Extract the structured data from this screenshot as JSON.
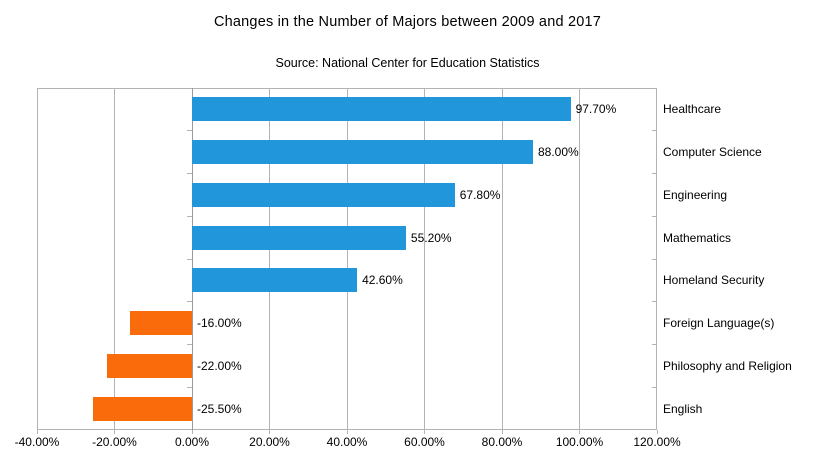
{
  "chart_data": {
    "type": "bar",
    "orientation": "horizontal",
    "title": "Changes in the Number of Majors between 2009 and 2017",
    "subtitle": "Source: National Center for Education Statistics",
    "categories": [
      "Healthcare",
      "Computer Science",
      "Engineering",
      "Mathematics",
      "Homeland Security",
      "Foreign Language(s)",
      "Philosophy and Religion",
      "English"
    ],
    "values": [
      97.7,
      88.0,
      67.8,
      55.2,
      42.6,
      -16.0,
      -22.0,
      -25.5
    ],
    "value_labels": [
      "97.70%",
      "88.00%",
      "67.80%",
      "55.20%",
      "42.60%",
      "-16.00%",
      "-22.00%",
      "-25.50%"
    ],
    "x_tick_labels": [
      "-40.00%",
      "-20.00%",
      "0.00%",
      "20.00%",
      "40.00%",
      "60.00%",
      "80.00%",
      "100.00%",
      "120.00%"
    ],
    "xlim": [
      -40,
      120
    ],
    "x_tick_step": 20,
    "grid": true,
    "legend": "none",
    "colors": {
      "positive_bar": "#2196db",
      "negative_bar": "#f96b0b",
      "gridline": "#b3b3b3",
      "plot_border": "#b3b3b3",
      "text": "#000000",
      "background": "#ffffff"
    }
  }
}
